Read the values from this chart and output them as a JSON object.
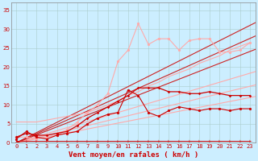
{
  "bg_color": "#cceeff",
  "grid_color": "#aacccc",
  "xlabel": "Vent moyen/en rafales ( km/h )",
  "xlabel_color": "#cc0000",
  "xlabel_fontsize": 6.5,
  "xtick_fontsize": 5,
  "ytick_fontsize": 5,
  "xlim": [
    -0.5,
    23.5
  ],
  "ylim": [
    0,
    37
  ],
  "yticks": [
    0,
    5,
    10,
    15,
    20,
    25,
    30,
    35
  ],
  "xticks": [
    0,
    1,
    2,
    3,
    4,
    5,
    6,
    7,
    8,
    9,
    10,
    11,
    12,
    13,
    14,
    15,
    16,
    17,
    18,
    19,
    20,
    21,
    22,
    23
  ],
  "linear_lines": [
    {
      "slope": 0.52,
      "color": "#ffaaaa",
      "linewidth": 0.8
    },
    {
      "slope": 0.65,
      "color": "#ffaaaa",
      "linewidth": 0.8
    },
    {
      "slope": 0.8,
      "color": "#ffaaaa",
      "linewidth": 0.8
    },
    {
      "slope": 1.05,
      "color": "#cc2222",
      "linewidth": 0.8
    },
    {
      "slope": 1.2,
      "color": "#cc2222",
      "linewidth": 0.8
    },
    {
      "slope": 1.35,
      "color": "#cc2222",
      "linewidth": 0.8
    }
  ],
  "series": [
    {
      "x": [
        0,
        1,
        2,
        3,
        4,
        5,
        6,
        7,
        8,
        9,
        10,
        11,
        12,
        13,
        14,
        15,
        16,
        17,
        18,
        19,
        20,
        21,
        22,
        23
      ],
      "y": [
        1.5,
        1.5,
        1.0,
        1.5,
        2.0,
        3.5,
        5.5,
        8.0,
        10.0,
        13.0,
        21.5,
        24.5,
        31.5,
        26.0,
        27.5,
        27.5,
        24.5,
        27.0,
        27.5,
        27.5,
        24.0,
        24.0,
        24.5,
        26.5
      ],
      "color": "#ffaaaa",
      "linewidth": 0.8,
      "marker": "o",
      "markersize": 2.0
    },
    {
      "x": [
        0,
        1,
        2,
        3,
        4,
        5,
        6,
        7,
        8,
        9,
        10,
        11,
        12,
        13,
        14,
        15,
        16,
        17,
        18,
        19,
        20,
        21,
        22,
        23
      ],
      "y": [
        5.5,
        5.5,
        5.5,
        6.0,
        6.5,
        7.0,
        7.5,
        8.0,
        9.0,
        10.0,
        11.0,
        12.5,
        13.5,
        15.0,
        16.0,
        17.5,
        18.5,
        19.5,
        21.0,
        22.0,
        23.0,
        24.5,
        25.5,
        26.5
      ],
      "color": "#ffaaaa",
      "linewidth": 0.8,
      "marker": null,
      "markersize": 0
    },
    {
      "x": [
        0,
        1,
        2,
        3,
        4,
        5,
        6,
        7,
        8,
        9,
        10,
        11,
        12,
        13,
        14,
        15,
        16,
        17,
        18,
        19,
        20,
        21,
        22,
        23
      ],
      "y": [
        1.5,
        2.5,
        2.0,
        2.0,
        2.5,
        3.0,
        4.5,
        6.5,
        8.0,
        9.5,
        11.0,
        12.5,
        14.5,
        14.5,
        14.5,
        13.5,
        13.5,
        13.0,
        13.0,
        13.5,
        13.0,
        12.5,
        12.5,
        12.5
      ],
      "color": "#cc0000",
      "linewidth": 0.9,
      "marker": "P",
      "markersize": 2.0
    },
    {
      "x": [
        0,
        1,
        2,
        3,
        4,
        5,
        6,
        7,
        8,
        9,
        10,
        11,
        12,
        13,
        14,
        15,
        16,
        17,
        18,
        19,
        20,
        21,
        22,
        23
      ],
      "y": [
        1.0,
        3.0,
        1.5,
        1.0,
        2.0,
        2.5,
        3.0,
        5.0,
        6.5,
        7.5,
        8.0,
        14.0,
        12.5,
        8.0,
        7.0,
        8.5,
        9.5,
        9.0,
        8.5,
        9.0,
        9.0,
        8.5,
        9.0,
        9.0
      ],
      "color": "#cc0000",
      "linewidth": 0.8,
      "marker": "o",
      "markersize": 2.0
    },
    {
      "x": [
        0,
        1,
        2,
        3,
        4,
        5,
        6,
        7,
        8,
        9,
        10,
        11,
        12,
        13,
        14,
        15,
        16,
        17,
        18,
        19,
        20,
        21,
        22,
        23
      ],
      "y": [
        0.5,
        0.5,
        0.5,
        0.5,
        0.5,
        0.5,
        0.5,
        0.5,
        0.5,
        0.5,
        0.5,
        0.5,
        0.5,
        0.5,
        0.5,
        0.5,
        0.5,
        0.5,
        0.5,
        0.5,
        0.5,
        0.5,
        0.5,
        0.5
      ],
      "color": "#cc0000",
      "linewidth": 0.7,
      "marker": "4",
      "markersize": 3
    }
  ]
}
